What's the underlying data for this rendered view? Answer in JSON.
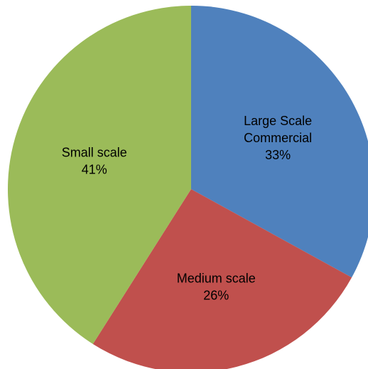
{
  "chart_data": {
    "type": "pie",
    "start_angle_deg": 0,
    "direction": "clockwise",
    "slices": [
      {
        "label_lines": [
          "Large Scale",
          "Commercial"
        ],
        "percent_label": "33%",
        "value": 33,
        "color": "#4F81BD"
      },
      {
        "label_lines": [
          "Medium scale"
        ],
        "percent_label": "26%",
        "value": 26,
        "color": "#C0504D"
      },
      {
        "label_lines": [
          "Small scale"
        ],
        "percent_label": "41%",
        "value": 41,
        "color": "#9BBB59"
      }
    ],
    "legend": "none",
    "grid": false
  }
}
